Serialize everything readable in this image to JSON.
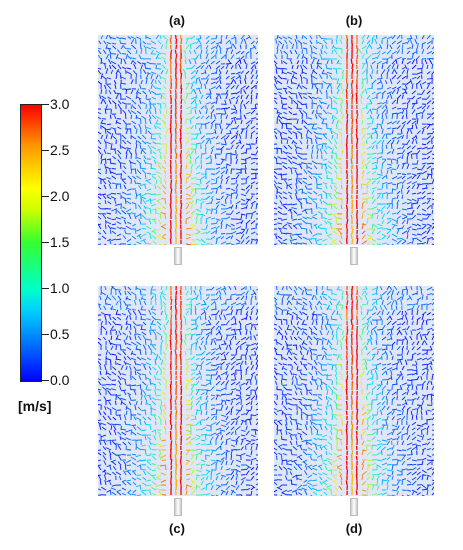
{
  "panels": [
    {
      "id": "a",
      "label": "(a)"
    },
    {
      "id": "b",
      "label": "(b)"
    },
    {
      "id": "c",
      "label": "(c)"
    },
    {
      "id": "d",
      "label": "(d)"
    }
  ],
  "colorbar": {
    "ticks": [
      "3.0",
      "2.5",
      "2.0",
      "1.5",
      "1.0",
      "0.5",
      "0.0"
    ],
    "unit": "[m/s]",
    "colors": [
      "#0000ff",
      "#00ccff",
      "#33ff33",
      "#ffff00",
      "#ff9900",
      "#ff0000"
    ]
  }
}
